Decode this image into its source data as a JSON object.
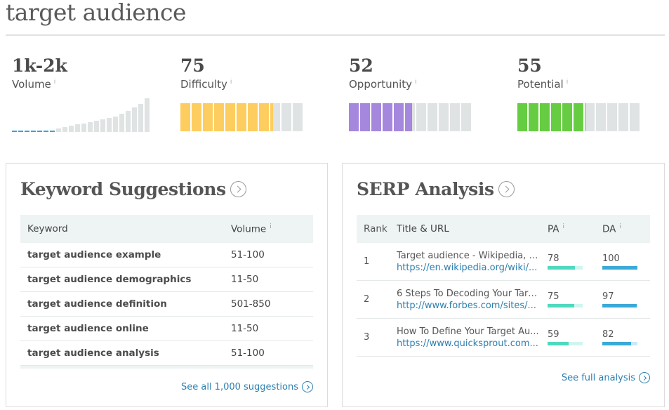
{
  "page": {
    "title": "target audience"
  },
  "metrics": {
    "volume": {
      "value": "1k-2k",
      "label": "Volume",
      "info": "i",
      "bar_levels": [
        0.04,
        0.04,
        0.04,
        0.04,
        0.04,
        0.04,
        0.04,
        0.1,
        0.14,
        0.18,
        0.22,
        0.26,
        0.3,
        0.34,
        0.38,
        0.42,
        0.46,
        0.54,
        0.62,
        0.72,
        0.84,
        1.0
      ],
      "highlighted_count": 7
    },
    "difficulty": {
      "value": "75",
      "label": "Difficulty",
      "info": "i",
      "color": "#fdcd5f",
      "score": 75
    },
    "opportunity": {
      "value": "52",
      "label": "Opportunity",
      "info": "i",
      "color": "#a587dd",
      "score": 52
    },
    "potential": {
      "value": "55",
      "label": "Potential",
      "info": "i",
      "color": "#66cd42",
      "score": 55
    }
  },
  "keyword_suggestions": {
    "title": "Keyword Suggestions",
    "columns": {
      "keyword": "Keyword",
      "volume": "Volume",
      "volume_info": "i"
    },
    "rows": [
      {
        "keyword": "target audience example",
        "volume": "51-100"
      },
      {
        "keyword": "target audience demographics",
        "volume": "11-50"
      },
      {
        "keyword": "target audience definition",
        "volume": "501-850"
      },
      {
        "keyword": "target audience online",
        "volume": "11-50"
      },
      {
        "keyword": "target audience analysis",
        "volume": "51-100"
      }
    ],
    "link": "See all 1,000 suggestions"
  },
  "serp_analysis": {
    "title": "SERP Analysis",
    "columns": {
      "rank": "Rank",
      "title_url": "Title & URL",
      "pa": "PA",
      "pa_info": "i",
      "da": "DA",
      "da_info": "i"
    },
    "pa_color": "#4fd9bf",
    "da_color": "#3aaad8",
    "rows": [
      {
        "rank": "1",
        "title": "Target audience - Wikipedia, t...",
        "url": "https://en.wikipedia.org/wiki/...",
        "pa": "78",
        "da": "100"
      },
      {
        "rank": "2",
        "title": "6 Steps To Decoding Your Targ...",
        "url": "http://www.forbes.com/sites/...",
        "pa": "75",
        "da": "97"
      },
      {
        "rank": "3",
        "title": "How To Define Your Target Au...",
        "url": "https://www.quicksprout.com...",
        "pa": "59",
        "da": "82"
      }
    ],
    "link": "See full analysis"
  }
}
